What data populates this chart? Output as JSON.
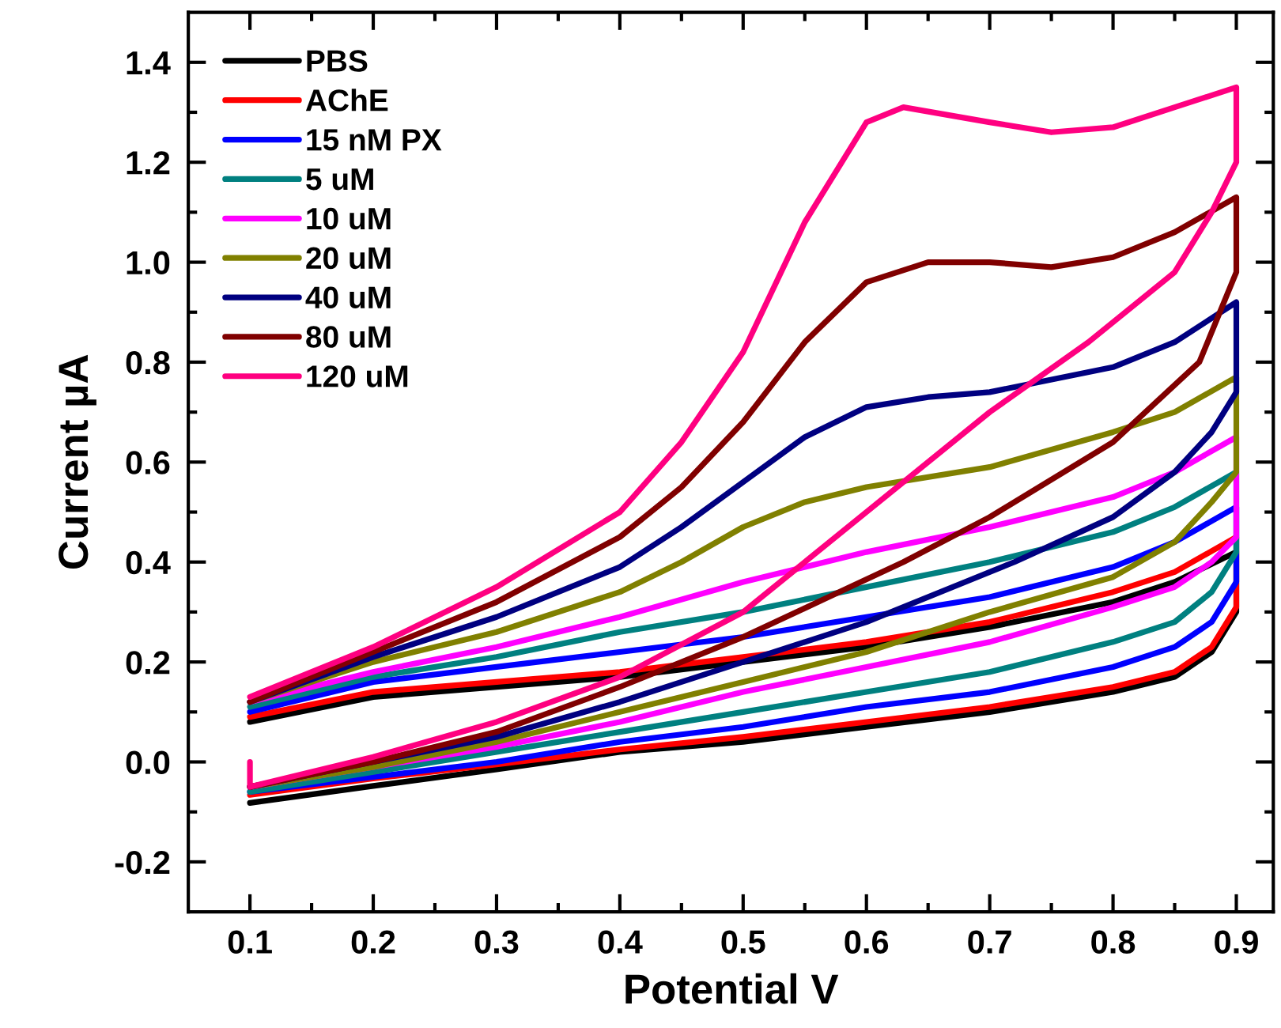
{
  "chart_data": {
    "type": "line",
    "xlabel": "Potential V",
    "ylabel": "Current µA",
    "xlim": [
      0.05,
      0.93
    ],
    "ylim": [
      -0.3,
      1.5
    ],
    "xticks": [
      0.1,
      0.2,
      0.3,
      0.4,
      0.5,
      0.6,
      0.7,
      0.8,
      0.9
    ],
    "yticks": [
      {
        "value": -0.2,
        "label": "-0.2"
      },
      {
        "value": 0.0,
        "label": "0.0"
      },
      {
        "value": 0.2,
        "label": "0.2"
      },
      {
        "value": 0.4,
        "label": "0.4"
      },
      {
        "value": 0.6,
        "label": "0.6"
      },
      {
        "value": 0.8,
        "label": "0.8"
      },
      {
        "value": 1.0,
        "label": "1.0"
      },
      {
        "value": 1.2,
        "label": "1.2"
      },
      {
        "value": 1.4,
        "label": "1.4"
      }
    ],
    "grid": false,
    "legend": "top left",
    "marker": "none",
    "line_style": "solid",
    "series": [
      {
        "name": "PBS",
        "color": "#000000",
        "x": [
          0.1,
          0.2,
          0.3,
          0.4,
          0.5,
          0.6,
          0.7,
          0.8,
          0.85,
          0.9,
          0.9,
          0.88,
          0.85,
          0.8,
          0.7,
          0.6,
          0.5,
          0.4,
          0.3,
          0.2,
          0.1
        ],
        "values": [
          0.08,
          0.13,
          0.15,
          0.17,
          0.2,
          0.23,
          0.27,
          0.32,
          0.36,
          0.42,
          0.3,
          0.22,
          0.17,
          0.14,
          0.1,
          0.07,
          0.04,
          0.02,
          -0.015,
          -0.048,
          -0.082
        ]
      },
      {
        "name": "AChE",
        "color": "#ff0000",
        "x": [
          0.1,
          0.2,
          0.3,
          0.4,
          0.5,
          0.6,
          0.7,
          0.8,
          0.85,
          0.9,
          0.9,
          0.88,
          0.85,
          0.8,
          0.7,
          0.6,
          0.5,
          0.4,
          0.3,
          0.2,
          0.1
        ],
        "values": [
          0.09,
          0.14,
          0.16,
          0.18,
          0.21,
          0.24,
          0.28,
          0.34,
          0.38,
          0.45,
          0.31,
          0.23,
          0.18,
          0.15,
          0.11,
          0.08,
          0.05,
          0.025,
          -0.005,
          -0.033,
          -0.066
        ]
      },
      {
        "name": "15 nM PX",
        "color": "#0000ff",
        "x": [
          0.1,
          0.2,
          0.3,
          0.4,
          0.5,
          0.6,
          0.7,
          0.8,
          0.85,
          0.9,
          0.9,
          0.88,
          0.85,
          0.8,
          0.7,
          0.6,
          0.5,
          0.4,
          0.3,
          0.2,
          0.1
        ],
        "values": [
          0.1,
          0.16,
          0.19,
          0.22,
          0.25,
          0.29,
          0.33,
          0.39,
          0.44,
          0.51,
          0.36,
          0.28,
          0.23,
          0.19,
          0.14,
          0.11,
          0.07,
          0.04,
          0.0,
          -0.03,
          -0.06
        ]
      },
      {
        "name": "5 uM",
        "color": "#008080",
        "x": [
          0.1,
          0.2,
          0.3,
          0.4,
          0.5,
          0.6,
          0.7,
          0.8,
          0.85,
          0.9,
          0.9,
          0.88,
          0.85,
          0.8,
          0.7,
          0.6,
          0.5,
          0.4,
          0.3,
          0.2,
          0.1
        ],
        "values": [
          0.11,
          0.17,
          0.21,
          0.26,
          0.3,
          0.35,
          0.4,
          0.46,
          0.51,
          0.58,
          0.42,
          0.34,
          0.28,
          0.24,
          0.18,
          0.14,
          0.1,
          0.06,
          0.02,
          -0.02,
          -0.06
        ]
      },
      {
        "name": "10 uM",
        "color": "#ff00ff",
        "x": [
          0.1,
          0.2,
          0.3,
          0.4,
          0.5,
          0.6,
          0.7,
          0.8,
          0.85,
          0.9,
          0.9,
          0.88,
          0.85,
          0.8,
          0.7,
          0.6,
          0.5,
          0.4,
          0.3,
          0.2,
          0.1
        ],
        "values": [
          0.12,
          0.18,
          0.23,
          0.29,
          0.36,
          0.42,
          0.47,
          0.53,
          0.58,
          0.65,
          0.45,
          0.4,
          0.35,
          0.31,
          0.24,
          0.19,
          0.14,
          0.08,
          0.03,
          -0.01,
          -0.05
        ]
      },
      {
        "name": "20 uM",
        "color": "#808000",
        "x": [
          0.1,
          0.2,
          0.3,
          0.4,
          0.45,
          0.5,
          0.55,
          0.6,
          0.7,
          0.8,
          0.85,
          0.9,
          0.9,
          0.88,
          0.85,
          0.8,
          0.7,
          0.6,
          0.5,
          0.4,
          0.3,
          0.2,
          0.1
        ],
        "values": [
          0.12,
          0.2,
          0.26,
          0.34,
          0.4,
          0.47,
          0.52,
          0.55,
          0.59,
          0.66,
          0.7,
          0.77,
          0.58,
          0.52,
          0.44,
          0.37,
          0.3,
          0.22,
          0.16,
          0.1,
          0.04,
          -0.01,
          -0.05
        ]
      },
      {
        "name": "40 uM",
        "color": "#000080",
        "x": [
          0.1,
          0.2,
          0.3,
          0.4,
          0.45,
          0.5,
          0.55,
          0.6,
          0.65,
          0.7,
          0.8,
          0.85,
          0.9,
          0.9,
          0.88,
          0.85,
          0.8,
          0.72,
          0.6,
          0.5,
          0.4,
          0.3,
          0.2,
          0.1
        ],
        "values": [
          0.12,
          0.21,
          0.29,
          0.39,
          0.47,
          0.56,
          0.65,
          0.71,
          0.73,
          0.74,
          0.79,
          0.84,
          0.92,
          0.74,
          0.66,
          0.58,
          0.49,
          0.4,
          0.28,
          0.2,
          0.12,
          0.05,
          0.0,
          -0.05
        ]
      },
      {
        "name": "80 uM",
        "color": "#800000",
        "x": [
          0.1,
          0.2,
          0.3,
          0.4,
          0.45,
          0.5,
          0.55,
          0.6,
          0.65,
          0.7,
          0.75,
          0.8,
          0.85,
          0.9,
          0.9,
          0.87,
          0.8,
          0.7,
          0.63,
          0.5,
          0.4,
          0.3,
          0.2,
          0.1
        ],
        "values": [
          0.12,
          0.22,
          0.32,
          0.45,
          0.55,
          0.68,
          0.84,
          0.96,
          1.0,
          1.0,
          0.99,
          1.01,
          1.06,
          1.13,
          0.98,
          0.8,
          0.64,
          0.49,
          0.4,
          0.25,
          0.15,
          0.06,
          0.0,
          -0.05
        ]
      },
      {
        "name": "120 uM",
        "color": "#ff0080",
        "x": [
          0.1,
          0.2,
          0.3,
          0.4,
          0.45,
          0.5,
          0.55,
          0.6,
          0.63,
          0.7,
          0.75,
          0.8,
          0.85,
          0.9,
          0.9,
          0.88,
          0.85,
          0.78,
          0.7,
          0.6,
          0.55,
          0.5,
          0.4,
          0.3,
          0.2,
          0.1,
          0.1
        ],
        "values": [
          0.13,
          0.23,
          0.35,
          0.5,
          0.64,
          0.82,
          1.08,
          1.28,
          1.31,
          1.28,
          1.26,
          1.27,
          1.31,
          1.35,
          1.2,
          1.1,
          0.98,
          0.84,
          0.7,
          0.5,
          0.4,
          0.3,
          0.17,
          0.08,
          0.01,
          -0.05,
          0.0
        ]
      }
    ]
  }
}
